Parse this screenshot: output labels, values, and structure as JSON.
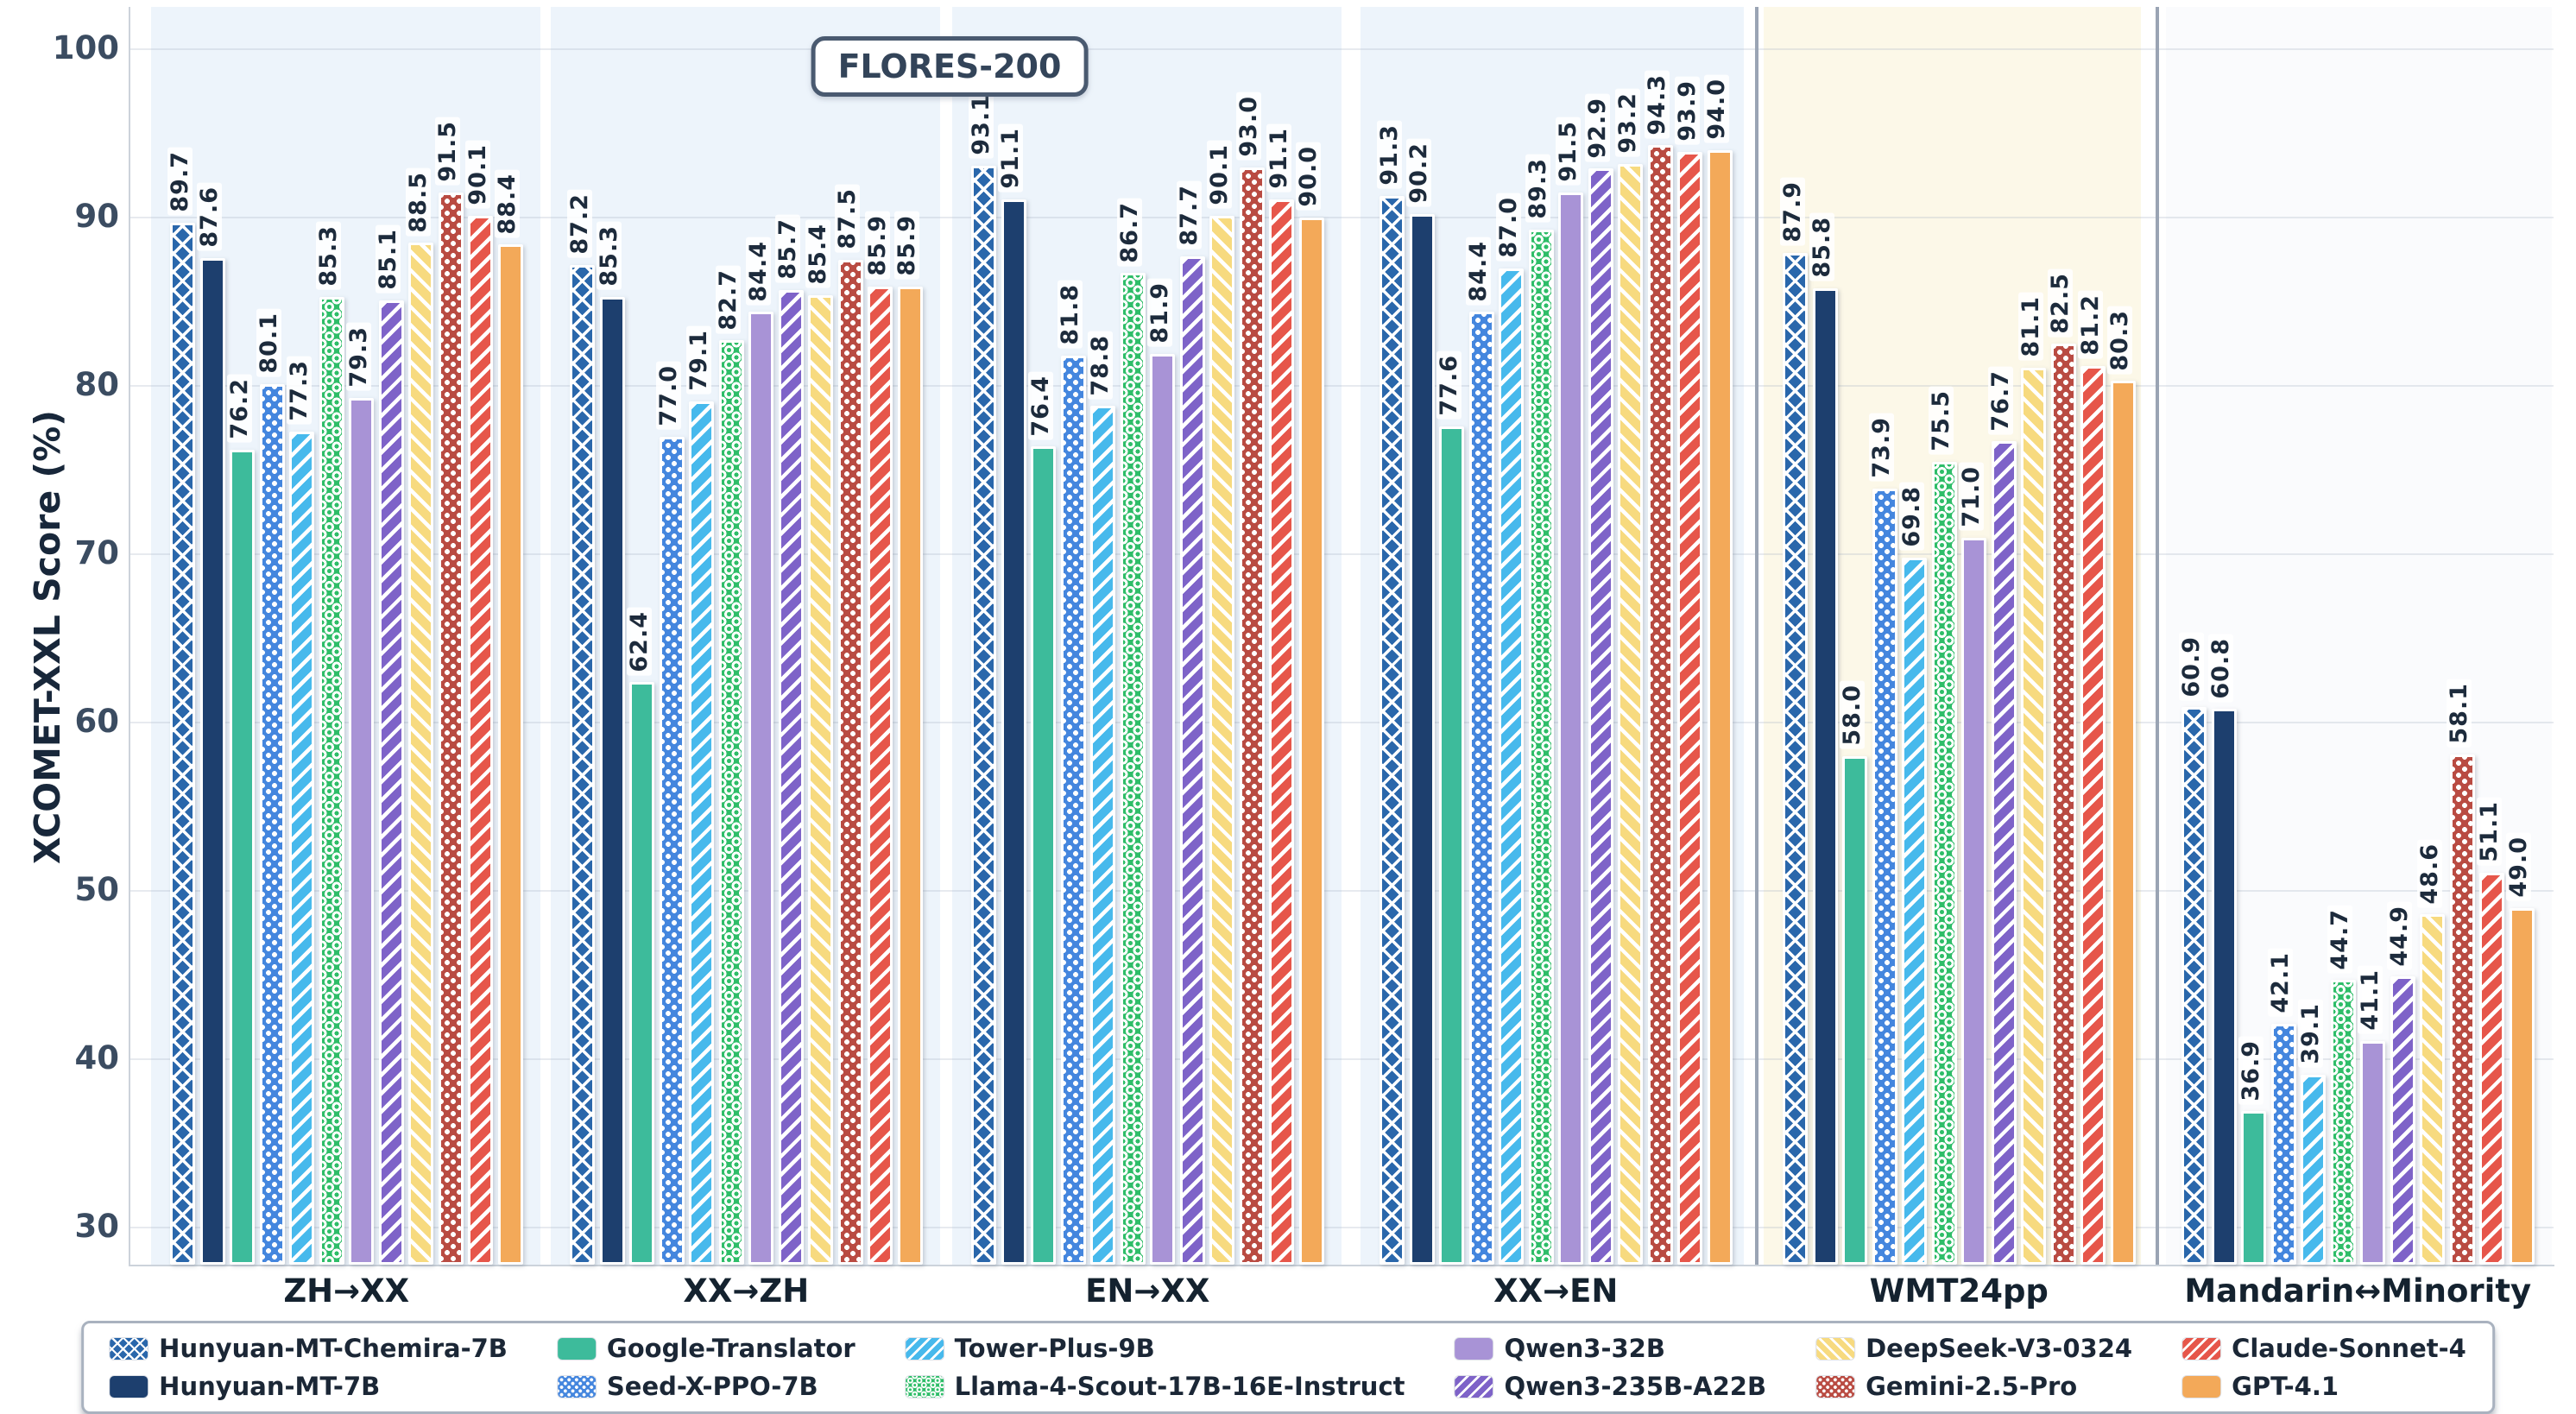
{
  "title_badge": "FLORES-200",
  "y_axis": {
    "label": "XCOMET-XXL Score (%)",
    "ticks": [
      100,
      90,
      80,
      70,
      60,
      50,
      40,
      30
    ]
  },
  "chart_data": {
    "type": "bar",
    "title": "FLORES-200",
    "xlabel": "",
    "ylabel": "XCOMET-XXL Score (%)",
    "ylim": [
      27.8,
      102.5
    ],
    "yticks": [
      30,
      40,
      50,
      60,
      70,
      80,
      90,
      100
    ],
    "grid": true,
    "legend_position": "bottom",
    "value_labels_rotated": true,
    "categories": [
      "ZH→XX",
      "XX→ZH",
      "EN→XX",
      "XX→EN",
      "WMT24pp",
      "Mandarin↔Minority"
    ],
    "sections": [
      {
        "name": "FLORES-200",
        "category_indexes": [
          0,
          1,
          2,
          3
        ],
        "background": "#edf4fb"
      },
      {
        "name": "WMT24pp",
        "category_indexes": [
          4
        ],
        "background": "#fcf8e8"
      },
      {
        "name": "Mandarin↔Minority",
        "category_indexes": [
          5
        ],
        "background": "#fafbfd"
      }
    ],
    "divider_color": "#9aa4b4",
    "series": [
      {
        "name": "Hunyuan-MT-Chemira-7B",
        "color": "#2a67ab",
        "pattern": "crosshatch",
        "values": [
          89.7,
          87.2,
          93.1,
          91.3,
          87.9,
          60.9
        ]
      },
      {
        "name": "Hunyuan-MT-7B",
        "color": "#1d3f6e",
        "pattern": "solid",
        "values": [
          87.6,
          85.3,
          91.1,
          90.2,
          85.8,
          60.8
        ]
      },
      {
        "name": "Google-Translator",
        "color": "#3dbb9b",
        "pattern": "solid",
        "values": [
          76.2,
          62.4,
          76.4,
          77.6,
          58.0,
          36.9
        ]
      },
      {
        "name": "Seed-X-PPO-7B",
        "color": "#4486de",
        "pattern": "dots",
        "values": [
          80.1,
          77.0,
          81.8,
          84.4,
          73.9,
          42.1
        ]
      },
      {
        "name": "Tower-Plus-9B",
        "color": "#47b9ec",
        "pattern": "stripe-up",
        "values": [
          77.3,
          79.1,
          78.8,
          87.0,
          69.8,
          39.1
        ]
      },
      {
        "name": "Llama-4-Scout-17B-16E-Instruct",
        "color": "#2ebd68",
        "pattern": "rings",
        "values": [
          85.3,
          82.7,
          86.7,
          89.3,
          75.5,
          44.7
        ]
      },
      {
        "name": "Qwen3-32B",
        "color": "#a893d6",
        "pattern": "solid",
        "values": [
          79.3,
          84.4,
          81.9,
          91.5,
          71.0,
          41.1
        ]
      },
      {
        "name": "Qwen3-235B-A22B",
        "color": "#7e63c8",
        "pattern": "stripe-up",
        "values": [
          85.1,
          85.7,
          87.7,
          92.9,
          76.7,
          44.9
        ]
      },
      {
        "name": "DeepSeek-V3-0324",
        "color": "#f7da7f",
        "pattern": "stripe-down",
        "values": [
          88.5,
          85.4,
          90.1,
          93.2,
          81.1,
          48.6
        ]
      },
      {
        "name": "Gemini-2.5-Pro",
        "color": "#b94b42",
        "pattern": "dots",
        "values": [
          91.5,
          87.5,
          93.0,
          94.3,
          82.5,
          58.1
        ]
      },
      {
        "name": "Claude-Sonnet-4",
        "color": "#e6564a",
        "pattern": "stripe-up",
        "values": [
          90.1,
          85.9,
          91.1,
          93.9,
          81.2,
          51.1
        ]
      },
      {
        "name": "GPT-4.1",
        "color": "#f3a959",
        "pattern": "solid",
        "values": [
          88.4,
          85.9,
          90.0,
          94.0,
          80.3,
          49.0
        ]
      }
    ]
  }
}
